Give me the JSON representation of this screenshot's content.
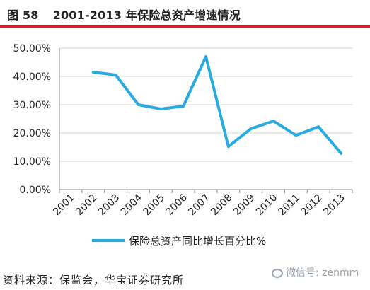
{
  "figure": {
    "label": "图 58",
    "title": "2001-2013 年保险总资产增速情况"
  },
  "source": "资料来源：保监会，华宝证券研究所",
  "watermark": "微信号: zenmm",
  "chart_data": {
    "type": "line",
    "categories": [
      "2001",
      "2002",
      "2003",
      "2004",
      "2005",
      "2006",
      "2007",
      "2008",
      "2009",
      "2010",
      "2011",
      "2012",
      "2013"
    ],
    "series": [
      {
        "name": "保险总资产同比增长百分比%",
        "color": "#29aae1",
        "values": [
          null,
          41.5,
          40.5,
          30.0,
          28.5,
          29.5,
          47.0,
          15.2,
          21.5,
          24.2,
          19.2,
          22.2,
          12.8
        ]
      }
    ],
    "y_ticks": [
      "0.00%",
      "10.00%",
      "20.00%",
      "30.00%",
      "40.00%",
      "50.00%"
    ],
    "ylim": [
      0,
      50
    ],
    "grid": true,
    "legend_position": "bottom"
  }
}
